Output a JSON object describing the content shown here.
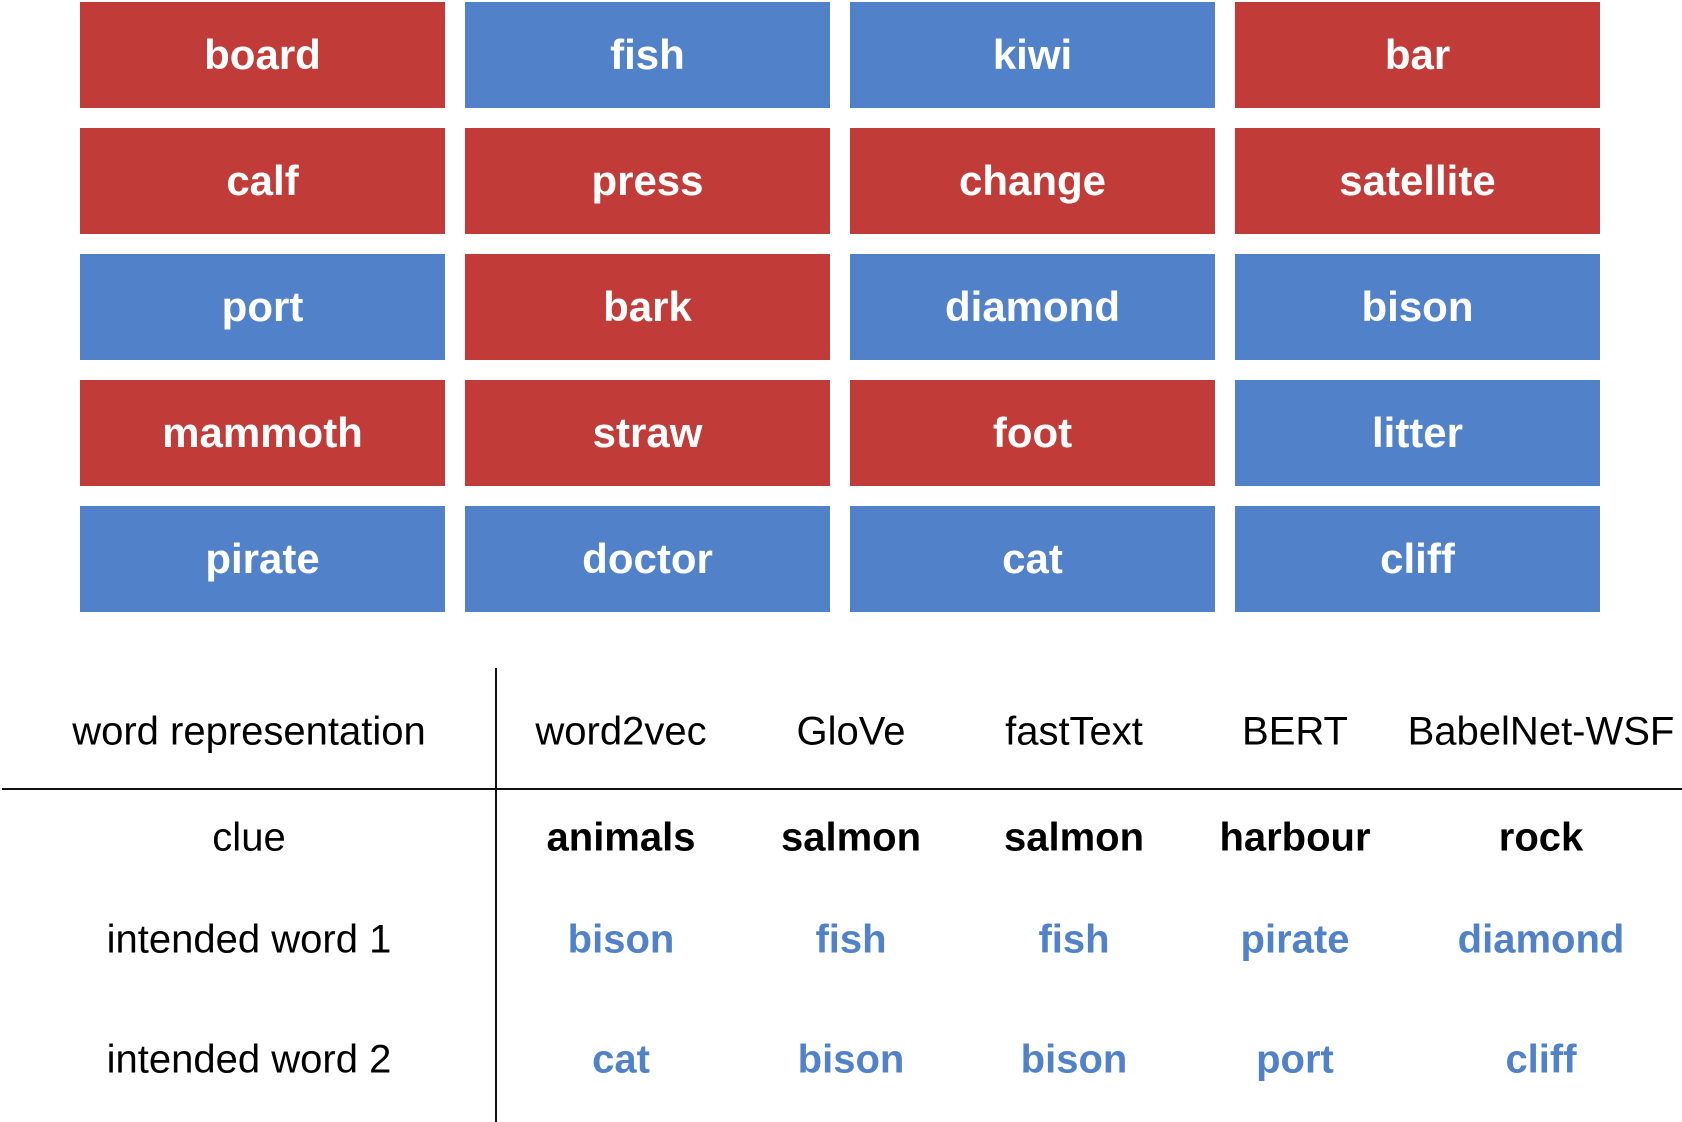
{
  "board": {
    "cards": [
      {
        "word": "board",
        "team": "red"
      },
      {
        "word": "fish",
        "team": "blue"
      },
      {
        "word": "kiwi",
        "team": "blue"
      },
      {
        "word": "bar",
        "team": "red"
      },
      {
        "word": "calf",
        "team": "red"
      },
      {
        "word": "press",
        "team": "red"
      },
      {
        "word": "change",
        "team": "red"
      },
      {
        "word": "satellite",
        "team": "red"
      },
      {
        "word": "port",
        "team": "blue"
      },
      {
        "word": "bark",
        "team": "red"
      },
      {
        "word": "diamond",
        "team": "blue"
      },
      {
        "word": "bison",
        "team": "blue"
      },
      {
        "word": "mammoth",
        "team": "red"
      },
      {
        "word": "straw",
        "team": "red"
      },
      {
        "word": "foot",
        "team": "red"
      },
      {
        "word": "litter",
        "team": "blue"
      },
      {
        "word": "pirate",
        "team": "blue"
      },
      {
        "word": "doctor",
        "team": "blue"
      },
      {
        "word": "cat",
        "team": "blue"
      },
      {
        "word": "cliff",
        "team": "blue"
      }
    ],
    "colors": {
      "red": "#c13c38",
      "blue": "#5182c9"
    }
  },
  "table": {
    "header_label": "word representation",
    "columns": [
      "word2vec",
      "GloVe",
      "fastText",
      "BERT",
      "BabelNet-WSF"
    ],
    "rows": [
      {
        "label": "clue",
        "values": [
          "animals",
          "salmon",
          "salmon",
          "harbour",
          "rock"
        ]
      },
      {
        "label": "intended word 1",
        "values": [
          "bison",
          "fish",
          "fish",
          "pirate",
          "diamond"
        ]
      },
      {
        "label": "intended word 2",
        "values": [
          "cat",
          "bison",
          "bison",
          "port",
          "cliff"
        ]
      }
    ]
  }
}
